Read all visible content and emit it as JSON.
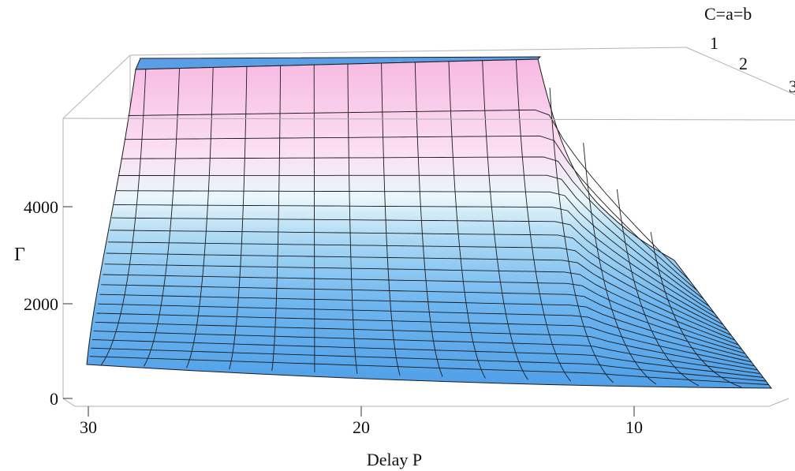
{
  "chart_data": {
    "type": "surface3d",
    "title": "",
    "xlabel": "Delay P",
    "ylabel": "Γ",
    "zlabel": "C=a=b",
    "x_ticks": [
      "30",
      "20",
      "10"
    ],
    "y_ticks": [
      "0",
      "2000",
      "4000"
    ],
    "z_ticks": [
      "1",
      "2",
      "3"
    ],
    "x_range": [
      4,
      31
    ],
    "y_range": [
      0,
      6000
    ],
    "z_range": [
      1,
      3
    ],
    "top_plateau": 5600,
    "P_samples": [
      29.4,
      27.8,
      26.2,
      24.6,
      23.0,
      21.4,
      19.8,
      18.2,
      16.6,
      15.0,
      13.4,
      11.8,
      10.2,
      8.6,
      7.0,
      5.4
    ],
    "Gamma_front_edge": [
      780,
      720,
      670,
      620,
      570,
      520,
      480,
      440,
      400,
      360,
      320,
      290,
      260,
      230,
      200,
      180
    ],
    "Gamma_back_edge": [
      5600,
      5600,
      5600,
      5600,
      5600,
      5600,
      5600,
      5600,
      5600,
      5600,
      5600,
      5600,
      5600,
      4900,
      4200,
      2900
    ],
    "colors": {
      "low": "#5aa8ef",
      "mid": "#e6f5fb",
      "high": "#f4a0d8",
      "mesh": "#1a1a1a",
      "box": "#b0b0b0"
    }
  }
}
